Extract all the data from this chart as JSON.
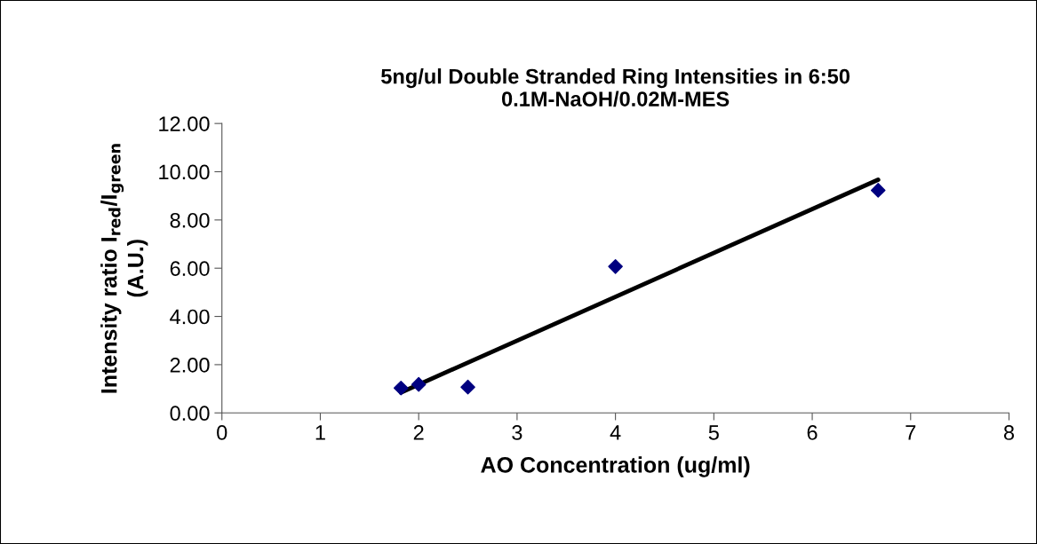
{
  "chart_data": {
    "type": "scatter",
    "title": "5ng/ul Double Stranded Ring Intensities in 6:50\n0.1M-NaOH/0.02M-MES",
    "xlabel": "AO Concentration (ug/ml)",
    "ylabel": "Intensity ratio I$_{red}$/I$_{green}$\n(A.U.)",
    "marker": "diamond",
    "grid": false,
    "legend": false,
    "xlim": [
      0,
      8
    ],
    "xticks": [
      0,
      1,
      2,
      3,
      4,
      5,
      6,
      7,
      8
    ],
    "ylim": [
      0,
      12
    ],
    "yticks": [
      {
        "value": 0,
        "label": "0.00"
      },
      {
        "value": 2,
        "label": "2.00"
      },
      {
        "value": 4,
        "label": "4.00"
      },
      {
        "value": 6,
        "label": "6.00"
      },
      {
        "value": 8,
        "label": "8.00"
      },
      {
        "value": 10,
        "label": "10.00"
      },
      {
        "value": 12,
        "label": "12.00"
      }
    ],
    "series": [
      {
        "color": "#000080",
        "x": [
          1.82,
          2,
          2.5,
          4,
          6.67
        ],
        "values": [
          1.03,
          1.18,
          1.07,
          6.07,
          9.23
        ]
      },
      {
        "type": "line",
        "color": "#000000",
        "x": [
          1.82,
          6.67
        ],
        "values": [
          0.85,
          9.67
        ],
        "marker": "none",
        "line_style": "solid"
      }
    ]
  }
}
